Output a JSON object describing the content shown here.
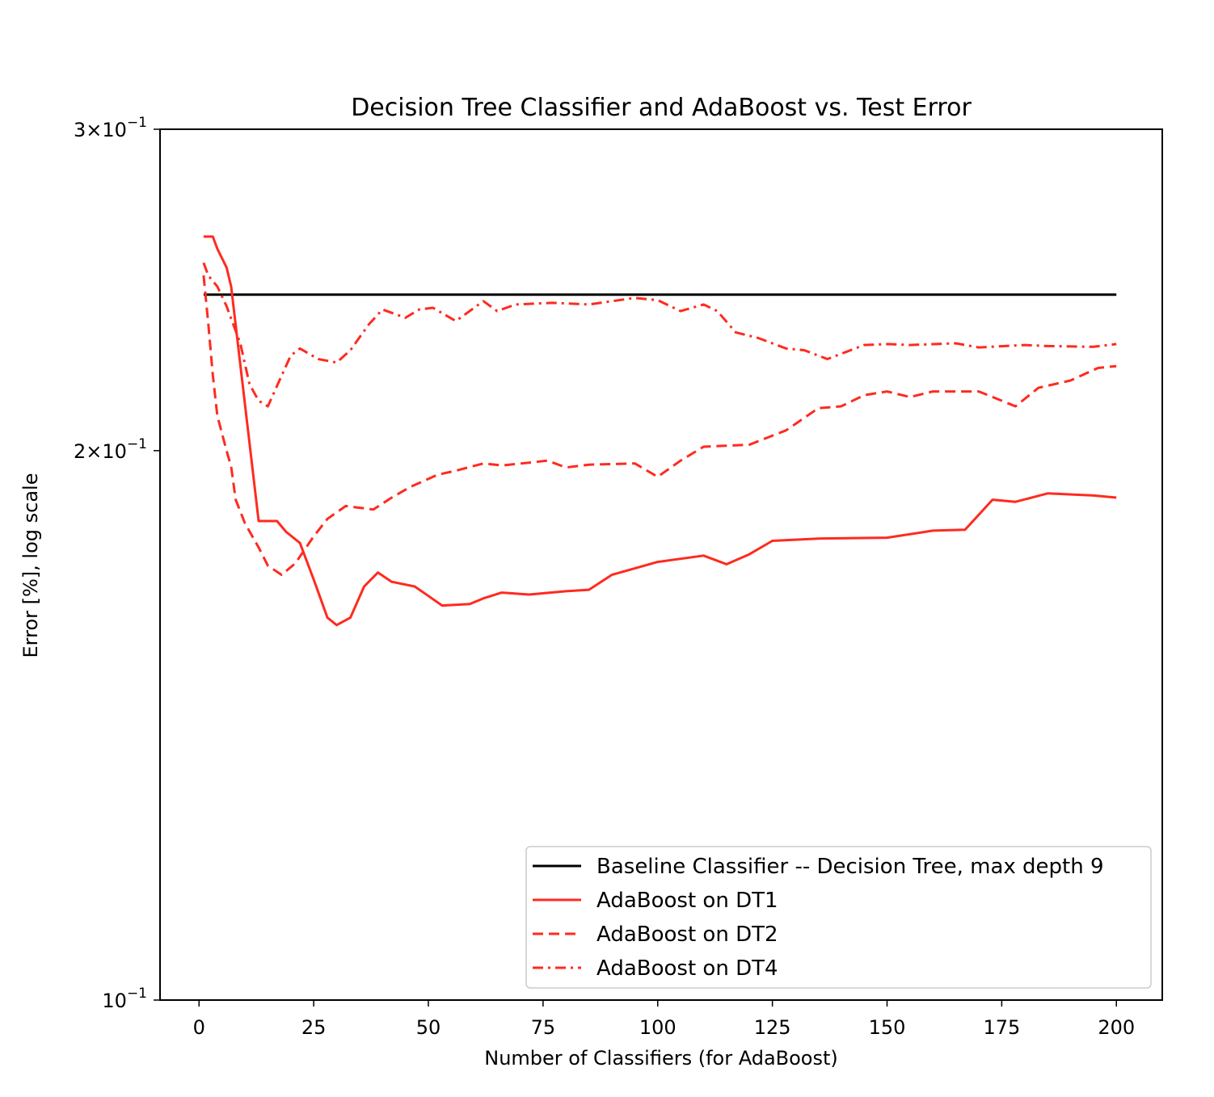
{
  "chart_data": {
    "type": "line",
    "title": "Decision Tree Classifier and AdaBoost vs. Test Error",
    "xlabel": "Number of Classifiers (for AdaBoost)",
    "ylabel": "Error [%], log scale",
    "yscale": "log",
    "xlim": [
      -8.5,
      210
    ],
    "ylim": [
      0.1,
      0.3
    ],
    "x_ticks": [
      0,
      25,
      50,
      75,
      100,
      125,
      150,
      175,
      200
    ],
    "y_ticks": [
      {
        "value": 0.1,
        "mantissa": "",
        "exponent": "−1"
      },
      {
        "value": 0.2,
        "mantissa": "2",
        "exponent": "−1"
      },
      {
        "value": 0.3,
        "mantissa": "3",
        "exponent": "−1"
      }
    ],
    "y_tick_base": "10",
    "y_tick_times": "×",
    "grid": false,
    "legend_position": "lower-right",
    "series": [
      {
        "name": "Baseline Classifier -- Decision Tree, max depth 9",
        "color": "#000000",
        "dash": "solid",
        "points": [
          [
            1,
            0.2435
          ],
          [
            200,
            0.2435
          ]
        ]
      },
      {
        "name": "AdaBoost on DT1",
        "color": "#ff2a1f",
        "dash": "solid",
        "points": [
          [
            1,
            0.262
          ],
          [
            3,
            0.262
          ],
          [
            4,
            0.258
          ],
          [
            6,
            0.252
          ],
          [
            7,
            0.246
          ],
          [
            13,
            0.183
          ],
          [
            17,
            0.183
          ],
          [
            19,
            0.1805
          ],
          [
            22,
            0.178
          ],
          [
            25,
            0.17
          ],
          [
            28,
            0.162
          ],
          [
            30,
            0.1605
          ],
          [
            33,
            0.162
          ],
          [
            36,
            0.1685
          ],
          [
            39,
            0.1715
          ],
          [
            42,
            0.1695
          ],
          [
            47,
            0.1685
          ],
          [
            50,
            0.1665
          ],
          [
            53,
            0.1645
          ],
          [
            59,
            0.1648
          ],
          [
            62,
            0.166
          ],
          [
            66,
            0.1672
          ],
          [
            72,
            0.1668
          ],
          [
            80,
            0.1675
          ],
          [
            85,
            0.1678
          ],
          [
            90,
            0.171
          ],
          [
            100,
            0.1738
          ],
          [
            110,
            0.1752
          ],
          [
            115,
            0.1733
          ],
          [
            120,
            0.1755
          ],
          [
            125,
            0.1785
          ],
          [
            135,
            0.179
          ],
          [
            150,
            0.1792
          ],
          [
            160,
            0.1808
          ],
          [
            167,
            0.181
          ],
          [
            173,
            0.188
          ],
          [
            178,
            0.1875
          ],
          [
            185,
            0.1895
          ],
          [
            195,
            0.189
          ],
          [
            200,
            0.1885
          ]
        ]
      },
      {
        "name": "AdaBoost on DT2",
        "color": "#ff2a1f",
        "dash": "dashed",
        "points": [
          [
            1,
            0.2495
          ],
          [
            2,
            0.235
          ],
          [
            3,
            0.22
          ],
          [
            4,
            0.209
          ],
          [
            6,
            0.2
          ],
          [
            7,
            0.196
          ],
          [
            8,
            0.188
          ],
          [
            10,
            0.1825
          ],
          [
            13,
            0.177
          ],
          [
            15,
            0.173
          ],
          [
            18,
            0.171
          ],
          [
            21,
            0.1735
          ],
          [
            25,
            0.1795
          ],
          [
            28,
            0.1835
          ],
          [
            32,
            0.1865
          ],
          [
            38,
            0.1857
          ],
          [
            42,
            0.1885
          ],
          [
            46,
            0.191
          ],
          [
            52,
            0.194
          ],
          [
            56,
            0.195
          ],
          [
            62,
            0.1968
          ],
          [
            66,
            0.1963
          ],
          [
            72,
            0.197
          ],
          [
            76,
            0.1975
          ],
          [
            80,
            0.1958
          ],
          [
            85,
            0.1965
          ],
          [
            95,
            0.1968
          ],
          [
            100,
            0.1935
          ],
          [
            105,
            0.1975
          ],
          [
            110,
            0.201
          ],
          [
            120,
            0.2015
          ],
          [
            128,
            0.2052
          ],
          [
            135,
            0.211
          ],
          [
            140,
            0.2115
          ],
          [
            145,
            0.2145
          ],
          [
            150,
            0.2155
          ],
          [
            155,
            0.214
          ],
          [
            160,
            0.2155
          ],
          [
            170,
            0.2155
          ],
          [
            178,
            0.2115
          ],
          [
            183,
            0.2165
          ],
          [
            190,
            0.2185
          ],
          [
            196,
            0.222
          ],
          [
            200,
            0.2225
          ]
        ]
      },
      {
        "name": "AdaBoost on DT4",
        "color": "#ff2a1f",
        "dash": "dashdot",
        "points": [
          [
            1,
            0.2535
          ],
          [
            2,
            0.2495
          ],
          [
            4,
            0.246
          ],
          [
            6,
            0.24
          ],
          [
            9,
            0.229
          ],
          [
            11,
            0.2175
          ],
          [
            13,
            0.213
          ],
          [
            15,
            0.2115
          ],
          [
            17,
            0.217
          ],
          [
            20,
            0.2255
          ],
          [
            22,
            0.2275
          ],
          [
            26,
            0.2245
          ],
          [
            30,
            0.2235
          ],
          [
            33,
            0.227
          ],
          [
            37,
            0.2345
          ],
          [
            40,
            0.239
          ],
          [
            45,
            0.2365
          ],
          [
            48,
            0.239
          ],
          [
            51,
            0.2395
          ],
          [
            56,
            0.2355
          ],
          [
            60,
            0.2395
          ],
          [
            62,
            0.2415
          ],
          [
            65,
            0.2385
          ],
          [
            69,
            0.2405
          ],
          [
            77,
            0.241
          ],
          [
            85,
            0.2405
          ],
          [
            95,
            0.2425
          ],
          [
            100,
            0.2418
          ],
          [
            105,
            0.2385
          ],
          [
            110,
            0.2405
          ],
          [
            113,
            0.2385
          ],
          [
            117,
            0.2322
          ],
          [
            122,
            0.2305
          ],
          [
            128,
            0.2275
          ],
          [
            132,
            0.227
          ],
          [
            137,
            0.2245
          ],
          [
            141,
            0.2265
          ],
          [
            145,
            0.2285
          ],
          [
            150,
            0.2288
          ],
          [
            155,
            0.2285
          ],
          [
            165,
            0.229
          ],
          [
            170,
            0.2278
          ],
          [
            180,
            0.2285
          ],
          [
            185,
            0.2282
          ],
          [
            195,
            0.228
          ],
          [
            200,
            0.2288
          ]
        ]
      }
    ]
  }
}
